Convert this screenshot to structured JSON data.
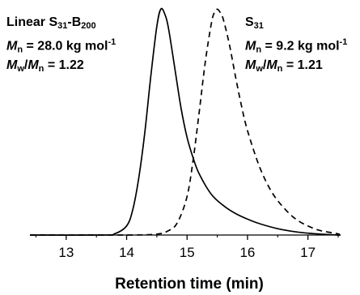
{
  "chart_data": {
    "type": "line",
    "xlabel": "Retention time (min)",
    "ylabel": "",
    "xlim": [
      12.4,
      17.5
    ],
    "ylim": [
      0,
      1
    ],
    "xticks": [
      13,
      14,
      15,
      16,
      17
    ],
    "grid": false,
    "series": [
      {
        "name": "",
        "style": "solid",
        "color": "#000000",
        "x": [
          13.6,
          13.8,
          14.0,
          14.1,
          14.2,
          14.3,
          14.4,
          14.5,
          14.57,
          14.65,
          14.7,
          14.8,
          14.9,
          15.0,
          15.1,
          15.2,
          15.4,
          15.6,
          15.8,
          16.0,
          16.2,
          16.5,
          16.8,
          17.1,
          17.5
        ],
        "values": [
          0.0,
          0.005,
          0.04,
          0.11,
          0.25,
          0.45,
          0.7,
          0.92,
          0.997,
          0.96,
          0.9,
          0.73,
          0.56,
          0.43,
          0.34,
          0.27,
          0.18,
          0.13,
          0.095,
          0.07,
          0.05,
          0.028,
          0.014,
          0.006,
          0.0
        ]
      },
      {
        "name": "",
        "style": "dashed",
        "color": "#000000",
        "x": [
          13.4,
          14.4,
          14.7,
          14.85,
          15.0,
          15.1,
          15.2,
          15.3,
          15.4,
          15.45,
          15.5,
          15.55,
          15.6,
          15.7,
          15.8,
          15.9,
          16.0,
          16.2,
          16.4,
          16.6,
          16.8,
          17.0,
          17.2,
          17.5
        ],
        "values": [
          0.0,
          0.002,
          0.02,
          0.06,
          0.17,
          0.33,
          0.54,
          0.76,
          0.93,
          0.98,
          0.995,
          0.98,
          0.95,
          0.84,
          0.7,
          0.57,
          0.46,
          0.3,
          0.19,
          0.12,
          0.07,
          0.04,
          0.02,
          0.005
        ]
      }
    ],
    "annotations": {
      "left": {
        "name_base": "Linear S",
        "name_sub1": "31",
        "name_mid": "-B",
        "name_sub2": "200",
        "mn_symbol": "M",
        "mn_sub": "n",
        "mn_value": " = 28.0 kg mol",
        "mn_exp": "-1",
        "pdi_sym1": "M",
        "pdi_sub1": "w",
        "pdi_slash": "/",
        "pdi_sym2": "M",
        "pdi_sub2": "n",
        "pdi_value": " = 1.22"
      },
      "right": {
        "name_base": "S",
        "name_sub1": "31",
        "mn_symbol": "M",
        "mn_sub": "n",
        "mn_value": " = 9.2 kg mol",
        "mn_exp": "-1",
        "pdi_sym1": "M",
        "pdi_sub1": "w",
        "pdi_slash": "/",
        "pdi_sym2": "M",
        "pdi_sub2": "n",
        "pdi_value": " = 1.21"
      }
    }
  }
}
